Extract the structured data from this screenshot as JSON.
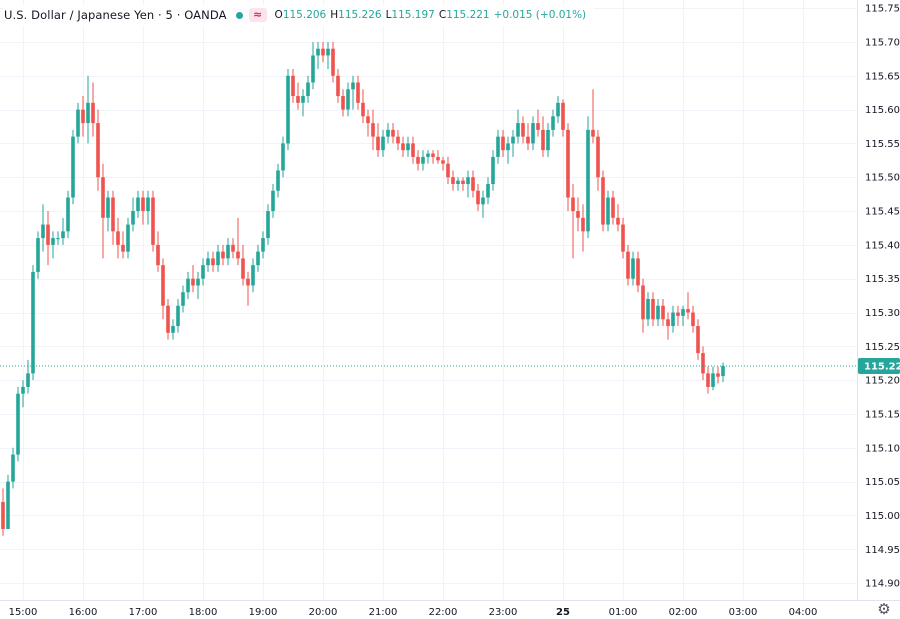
{
  "legend": {
    "title": "U.S. Dollar / Japanese Yen · 5 · OANDA",
    "wave_icon": "≈",
    "open_label": "O",
    "open_value": "115.206",
    "high_label": "H",
    "high_value": "115.226",
    "low_label": "L",
    "low_value": "115.197",
    "close_label": "C",
    "close_value": "115.221",
    "change_value": "+0.015 (+0.01%)"
  },
  "colors": {
    "up": "#26a69a",
    "down": "#ef5350",
    "grid": "#f0f3fa",
    "last_price_tag": "#26a69a"
  },
  "chart_data": {
    "type": "candlestick",
    "title": "U.S. Dollar / Japanese Yen · 5 · OANDA",
    "interval": "5",
    "source": "OANDA",
    "y_axis": {
      "side": "right",
      "ylim": [
        114.875,
        115.762
      ],
      "ticks": [
        "115.750",
        "115.700",
        "115.650",
        "115.600",
        "115.550",
        "115.500",
        "115.450",
        "115.400",
        "115.350",
        "115.300",
        "115.250",
        "115.200",
        "115.150",
        "115.100",
        "115.050",
        "115.000",
        "114.950",
        "114.900"
      ]
    },
    "x_axis": {
      "ticks": [
        {
          "label": "15:00",
          "index": 4
        },
        {
          "label": "16:00",
          "index": 16
        },
        {
          "label": "17:00",
          "index": 28
        },
        {
          "label": "18:00",
          "index": 40
        },
        {
          "label": "19:00",
          "index": 52
        },
        {
          "label": "20:00",
          "index": 64
        },
        {
          "label": "21:00",
          "index": 76
        },
        {
          "label": "22:00",
          "index": 88
        },
        {
          "label": "23:00",
          "index": 100
        },
        {
          "label": "25",
          "index": 112,
          "bold": true
        },
        {
          "label": "01:00",
          "index": 124
        },
        {
          "label": "02:00",
          "index": 136
        },
        {
          "label": "03:00",
          "index": 148
        },
        {
          "label": "04:00",
          "index": 160
        }
      ]
    },
    "last_price": "115.221",
    "candles": [
      {
        "o": 115.02,
        "h": 115.04,
        "l": 114.97,
        "c": 114.98
      },
      {
        "o": 114.98,
        "h": 115.06,
        "l": 114.98,
        "c": 115.05
      },
      {
        "o": 115.05,
        "h": 115.1,
        "l": 115.04,
        "c": 115.09
      },
      {
        "o": 115.09,
        "h": 115.19,
        "l": 115.08,
        "c": 115.18
      },
      {
        "o": 115.18,
        "h": 115.2,
        "l": 115.16,
        "c": 115.19
      },
      {
        "o": 115.19,
        "h": 115.23,
        "l": 115.18,
        "c": 115.21
      },
      {
        "o": 115.21,
        "h": 115.37,
        "l": 115.2,
        "c": 115.36
      },
      {
        "o": 115.36,
        "h": 115.42,
        "l": 115.35,
        "c": 115.41
      },
      {
        "o": 115.41,
        "h": 115.46,
        "l": 115.39,
        "c": 115.43
      },
      {
        "o": 115.43,
        "h": 115.45,
        "l": 115.37,
        "c": 115.4
      },
      {
        "o": 115.4,
        "h": 115.42,
        "l": 115.38,
        "c": 115.41
      },
      {
        "o": 115.41,
        "h": 115.42,
        "l": 115.4,
        "c": 115.41
      },
      {
        "o": 115.41,
        "h": 115.44,
        "l": 115.4,
        "c": 115.42
      },
      {
        "o": 115.42,
        "h": 115.48,
        "l": 115.41,
        "c": 115.47
      },
      {
        "o": 115.47,
        "h": 115.57,
        "l": 115.46,
        "c": 115.56
      },
      {
        "o": 115.56,
        "h": 115.61,
        "l": 115.55,
        "c": 115.6
      },
      {
        "o": 115.6,
        "h": 115.62,
        "l": 115.56,
        "c": 115.58
      },
      {
        "o": 115.58,
        "h": 115.65,
        "l": 115.55,
        "c": 115.61
      },
      {
        "o": 115.61,
        "h": 115.64,
        "l": 115.56,
        "c": 115.58
      },
      {
        "o": 115.58,
        "h": 115.6,
        "l": 115.48,
        "c": 115.5
      },
      {
        "o": 115.5,
        "h": 115.52,
        "l": 115.38,
        "c": 115.44
      },
      {
        "o": 115.44,
        "h": 115.48,
        "l": 115.42,
        "c": 115.47
      },
      {
        "o": 115.47,
        "h": 115.48,
        "l": 115.4,
        "c": 115.42
      },
      {
        "o": 115.42,
        "h": 115.44,
        "l": 115.38,
        "c": 115.4
      },
      {
        "o": 115.4,
        "h": 115.42,
        "l": 115.38,
        "c": 115.39
      },
      {
        "o": 115.39,
        "h": 115.44,
        "l": 115.38,
        "c": 115.43
      },
      {
        "o": 115.43,
        "h": 115.47,
        "l": 115.42,
        "c": 115.45
      },
      {
        "o": 115.45,
        "h": 115.48,
        "l": 115.44,
        "c": 115.47
      },
      {
        "o": 115.47,
        "h": 115.48,
        "l": 115.43,
        "c": 115.45
      },
      {
        "o": 115.45,
        "h": 115.48,
        "l": 115.43,
        "c": 115.47
      },
      {
        "o": 115.47,
        "h": 115.48,
        "l": 115.39,
        "c": 115.4
      },
      {
        "o": 115.4,
        "h": 115.42,
        "l": 115.36,
        "c": 115.37
      },
      {
        "o": 115.37,
        "h": 115.38,
        "l": 115.29,
        "c": 115.31
      },
      {
        "o": 115.31,
        "h": 115.32,
        "l": 115.26,
        "c": 115.27
      },
      {
        "o": 115.27,
        "h": 115.29,
        "l": 115.26,
        "c": 115.28
      },
      {
        "o": 115.28,
        "h": 115.32,
        "l": 115.27,
        "c": 115.31
      },
      {
        "o": 115.31,
        "h": 115.34,
        "l": 115.3,
        "c": 115.33
      },
      {
        "o": 115.33,
        "h": 115.36,
        "l": 115.32,
        "c": 115.35
      },
      {
        "o": 115.35,
        "h": 115.37,
        "l": 115.33,
        "c": 115.34
      },
      {
        "o": 115.34,
        "h": 115.36,
        "l": 115.32,
        "c": 115.35
      },
      {
        "o": 115.35,
        "h": 115.38,
        "l": 115.34,
        "c": 115.37
      },
      {
        "o": 115.37,
        "h": 115.39,
        "l": 115.36,
        "c": 115.38
      },
      {
        "o": 115.38,
        "h": 115.39,
        "l": 115.36,
        "c": 115.37
      },
      {
        "o": 115.37,
        "h": 115.4,
        "l": 115.36,
        "c": 115.39
      },
      {
        "o": 115.39,
        "h": 115.4,
        "l": 115.37,
        "c": 115.38
      },
      {
        "o": 115.38,
        "h": 115.41,
        "l": 115.37,
        "c": 115.4
      },
      {
        "o": 115.4,
        "h": 115.41,
        "l": 115.38,
        "c": 115.39
      },
      {
        "o": 115.39,
        "h": 115.44,
        "l": 115.37,
        "c": 115.38
      },
      {
        "o": 115.38,
        "h": 115.4,
        "l": 115.34,
        "c": 115.35
      },
      {
        "o": 115.35,
        "h": 115.36,
        "l": 115.31,
        "c": 115.34
      },
      {
        "o": 115.34,
        "h": 115.38,
        "l": 115.33,
        "c": 115.37
      },
      {
        "o": 115.37,
        "h": 115.4,
        "l": 115.36,
        "c": 115.39
      },
      {
        "o": 115.39,
        "h": 115.42,
        "l": 115.38,
        "c": 115.41
      },
      {
        "o": 115.41,
        "h": 115.46,
        "l": 115.4,
        "c": 115.45
      },
      {
        "o": 115.45,
        "h": 115.49,
        "l": 115.44,
        "c": 115.48
      },
      {
        "o": 115.48,
        "h": 115.52,
        "l": 115.47,
        "c": 115.51
      },
      {
        "o": 115.51,
        "h": 115.56,
        "l": 115.5,
        "c": 115.55
      },
      {
        "o": 115.55,
        "h": 115.66,
        "l": 115.54,
        "c": 115.65
      },
      {
        "o": 115.65,
        "h": 115.66,
        "l": 115.61,
        "c": 115.62
      },
      {
        "o": 115.62,
        "h": 115.64,
        "l": 115.6,
        "c": 115.61
      },
      {
        "o": 115.61,
        "h": 115.63,
        "l": 115.59,
        "c": 115.62
      },
      {
        "o": 115.62,
        "h": 115.65,
        "l": 115.61,
        "c": 115.64
      },
      {
        "o": 115.64,
        "h": 115.7,
        "l": 115.63,
        "c": 115.68
      },
      {
        "o": 115.68,
        "h": 115.7,
        "l": 115.66,
        "c": 115.69
      },
      {
        "o": 115.69,
        "h": 115.7,
        "l": 115.67,
        "c": 115.68
      },
      {
        "o": 115.68,
        "h": 115.7,
        "l": 115.66,
        "c": 115.69
      },
      {
        "o": 115.69,
        "h": 115.7,
        "l": 115.64,
        "c": 115.65
      },
      {
        "o": 115.65,
        "h": 115.66,
        "l": 115.61,
        "c": 115.62
      },
      {
        "o": 115.62,
        "h": 115.63,
        "l": 115.59,
        "c": 115.6
      },
      {
        "o": 115.6,
        "h": 115.64,
        "l": 115.59,
        "c": 115.63
      },
      {
        "o": 115.63,
        "h": 115.65,
        "l": 115.6,
        "c": 115.64
      },
      {
        "o": 115.64,
        "h": 115.65,
        "l": 115.6,
        "c": 115.61
      },
      {
        "o": 115.61,
        "h": 115.63,
        "l": 115.58,
        "c": 115.59
      },
      {
        "o": 115.59,
        "h": 115.6,
        "l": 115.56,
        "c": 115.58
      },
      {
        "o": 115.58,
        "h": 115.6,
        "l": 115.54,
        "c": 115.56
      },
      {
        "o": 115.56,
        "h": 115.58,
        "l": 115.53,
        "c": 115.54
      },
      {
        "o": 115.54,
        "h": 115.57,
        "l": 115.53,
        "c": 115.56
      },
      {
        "o": 115.56,
        "h": 115.58,
        "l": 115.55,
        "c": 115.57
      },
      {
        "o": 115.57,
        "h": 115.58,
        "l": 115.55,
        "c": 115.56
      },
      {
        "o": 115.56,
        "h": 115.57,
        "l": 115.54,
        "c": 115.55
      },
      {
        "o": 115.55,
        "h": 115.56,
        "l": 115.53,
        "c": 115.54
      },
      {
        "o": 115.54,
        "h": 115.56,
        "l": 115.53,
        "c": 115.55
      },
      {
        "o": 115.55,
        "h": 115.56,
        "l": 115.52,
        "c": 115.53
      },
      {
        "o": 115.53,
        "h": 115.54,
        "l": 115.51,
        "c": 115.52
      },
      {
        "o": 115.52,
        "h": 115.54,
        "l": 115.51,
        "c": 115.53
      },
      {
        "o": 115.53,
        "h": 115.54,
        "l": 115.52,
        "c": 115.535
      },
      {
        "o": 115.535,
        "h": 115.54,
        "l": 115.52,
        "c": 115.53
      },
      {
        "o": 115.53,
        "h": 115.54,
        "l": 115.52,
        "c": 115.525
      },
      {
        "o": 115.525,
        "h": 115.53,
        "l": 115.51,
        "c": 115.52
      },
      {
        "o": 115.52,
        "h": 115.53,
        "l": 115.49,
        "c": 115.5
      },
      {
        "o": 115.5,
        "h": 115.51,
        "l": 115.48,
        "c": 115.49
      },
      {
        "o": 115.49,
        "h": 115.5,
        "l": 115.48,
        "c": 115.495
      },
      {
        "o": 115.495,
        "h": 115.5,
        "l": 115.48,
        "c": 115.49
      },
      {
        "o": 115.49,
        "h": 115.51,
        "l": 115.47,
        "c": 115.5
      },
      {
        "o": 115.5,
        "h": 115.51,
        "l": 115.47,
        "c": 115.48
      },
      {
        "o": 115.48,
        "h": 115.49,
        "l": 115.45,
        "c": 115.46
      },
      {
        "o": 115.46,
        "h": 115.48,
        "l": 115.44,
        "c": 115.47
      },
      {
        "o": 115.47,
        "h": 115.5,
        "l": 115.46,
        "c": 115.49
      },
      {
        "o": 115.49,
        "h": 115.54,
        "l": 115.48,
        "c": 115.53
      },
      {
        "o": 115.53,
        "h": 115.57,
        "l": 115.52,
        "c": 115.56
      },
      {
        "o": 115.56,
        "h": 115.57,
        "l": 115.53,
        "c": 115.54
      },
      {
        "o": 115.54,
        "h": 115.56,
        "l": 115.52,
        "c": 115.55
      },
      {
        "o": 115.55,
        "h": 115.57,
        "l": 115.53,
        "c": 115.56
      },
      {
        "o": 115.56,
        "h": 115.6,
        "l": 115.55,
        "c": 115.58
      },
      {
        "o": 115.58,
        "h": 115.59,
        "l": 115.55,
        "c": 115.56
      },
      {
        "o": 115.56,
        "h": 115.58,
        "l": 115.54,
        "c": 115.55
      },
      {
        "o": 115.55,
        "h": 115.59,
        "l": 115.54,
        "c": 115.58
      },
      {
        "o": 115.58,
        "h": 115.6,
        "l": 115.56,
        "c": 115.57
      },
      {
        "o": 115.57,
        "h": 115.59,
        "l": 115.53,
        "c": 115.54
      },
      {
        "o": 115.54,
        "h": 115.58,
        "l": 115.53,
        "c": 115.57
      },
      {
        "o": 115.57,
        "h": 115.6,
        "l": 115.56,
        "c": 115.59
      },
      {
        "o": 115.59,
        "h": 115.62,
        "l": 115.58,
        "c": 115.61
      },
      {
        "o": 115.61,
        "h": 115.615,
        "l": 115.56,
        "c": 115.57
      },
      {
        "o": 115.57,
        "h": 115.58,
        "l": 115.45,
        "c": 115.47
      },
      {
        "o": 115.47,
        "h": 115.49,
        "l": 115.38,
        "c": 115.45
      },
      {
        "o": 115.45,
        "h": 115.47,
        "l": 115.42,
        "c": 115.44
      },
      {
        "o": 115.44,
        "h": 115.46,
        "l": 115.39,
        "c": 115.42
      },
      {
        "o": 115.42,
        "h": 115.59,
        "l": 115.41,
        "c": 115.57
      },
      {
        "o": 115.57,
        "h": 115.63,
        "l": 115.55,
        "c": 115.56
      },
      {
        "o": 115.56,
        "h": 115.57,
        "l": 115.48,
        "c": 115.5
      },
      {
        "o": 115.5,
        "h": 115.51,
        "l": 115.42,
        "c": 115.43
      },
      {
        "o": 115.43,
        "h": 115.48,
        "l": 115.42,
        "c": 115.47
      },
      {
        "o": 115.47,
        "h": 115.48,
        "l": 115.43,
        "c": 115.44
      },
      {
        "o": 115.44,
        "h": 115.46,
        "l": 115.42,
        "c": 115.43
      },
      {
        "o": 115.43,
        "h": 115.44,
        "l": 115.38,
        "c": 115.39
      },
      {
        "o": 115.39,
        "h": 115.4,
        "l": 115.34,
        "c": 115.35
      },
      {
        "o": 115.35,
        "h": 115.39,
        "l": 115.34,
        "c": 115.38
      },
      {
        "o": 115.38,
        "h": 115.39,
        "l": 115.33,
        "c": 115.34
      },
      {
        "o": 115.34,
        "h": 115.35,
        "l": 115.27,
        "c": 115.29
      },
      {
        "o": 115.29,
        "h": 115.33,
        "l": 115.28,
        "c": 115.32
      },
      {
        "o": 115.32,
        "h": 115.33,
        "l": 115.28,
        "c": 115.29
      },
      {
        "o": 115.29,
        "h": 115.32,
        "l": 115.28,
        "c": 115.31
      },
      {
        "o": 115.31,
        "h": 115.32,
        "l": 115.28,
        "c": 115.29
      },
      {
        "o": 115.29,
        "h": 115.3,
        "l": 115.26,
        "c": 115.28
      },
      {
        "o": 115.28,
        "h": 115.31,
        "l": 115.27,
        "c": 115.3
      },
      {
        "o": 115.3,
        "h": 115.31,
        "l": 115.28,
        "c": 115.295
      },
      {
        "o": 115.295,
        "h": 115.31,
        "l": 115.28,
        "c": 115.305
      },
      {
        "o": 115.305,
        "h": 115.33,
        "l": 115.29,
        "c": 115.3
      },
      {
        "o": 115.3,
        "h": 115.31,
        "l": 115.27,
        "c": 115.28
      },
      {
        "o": 115.28,
        "h": 115.29,
        "l": 115.23,
        "c": 115.24
      },
      {
        "o": 115.24,
        "h": 115.25,
        "l": 115.2,
        "c": 115.21
      },
      {
        "o": 115.21,
        "h": 115.22,
        "l": 115.18,
        "c": 115.19
      },
      {
        "o": 115.19,
        "h": 115.22,
        "l": 115.185,
        "c": 115.21
      },
      {
        "o": 115.21,
        "h": 115.22,
        "l": 115.195,
        "c": 115.205
      },
      {
        "o": 115.206,
        "h": 115.226,
        "l": 115.197,
        "c": 115.221
      }
    ]
  }
}
